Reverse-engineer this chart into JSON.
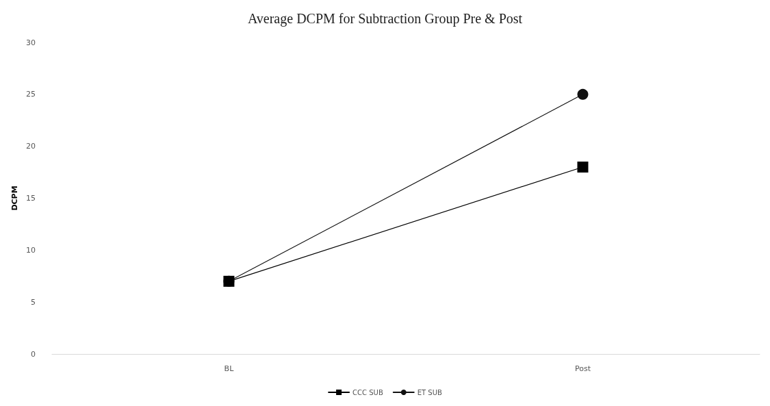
{
  "chart_data": {
    "type": "line",
    "title": "Average DCPM for Subtraction Group Pre & Post",
    "ylabel": "DCPM",
    "categories": [
      "BL",
      "Post"
    ],
    "series": [
      {
        "name": "CCC SUB",
        "color": "#000000",
        "marker": "square",
        "values": [
          7,
          18
        ]
      },
      {
        "name": "ET SUB",
        "color": "#111111",
        "marker": "circle",
        "values": [
          7,
          25
        ]
      }
    ],
    "ylim": [
      0,
      30
    ],
    "yticks": [
      0,
      5,
      10,
      15,
      20,
      25,
      30
    ],
    "grid": false,
    "legend": "bottom",
    "line_style": "solid"
  }
}
